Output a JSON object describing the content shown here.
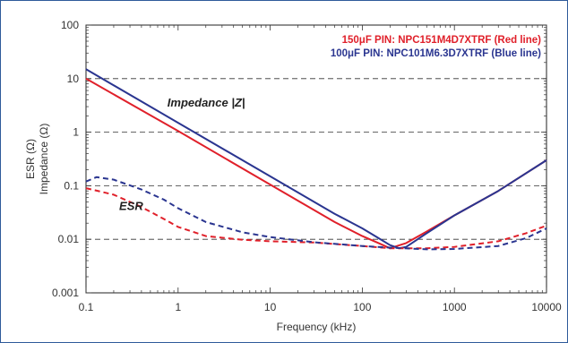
{
  "chart_data": {
    "type": "line",
    "xlabel": "Frequency (kHz)",
    "ylabel_lines": [
      "ESR (Ω)",
      "Impedance (Ω)"
    ],
    "x_scale": "log",
    "y_scale": "log",
    "xlim": [
      0.1,
      10000
    ],
    "ylim": [
      0.001,
      100
    ],
    "x_ticks": [
      {
        "value": 0.1,
        "label": "0.1"
      },
      {
        "value": 1,
        "label": "1"
      },
      {
        "value": 10,
        "label": "10"
      },
      {
        "value": 100,
        "label": "100"
      },
      {
        "value": 1000,
        "label": "1000"
      },
      {
        "value": 10000,
        "label": "10000"
      }
    ],
    "y_ticks": [
      {
        "value": 0.001,
        "label": "0.001"
      },
      {
        "value": 0.01,
        "label": "0.01"
      },
      {
        "value": 0.1,
        "label": "0.1"
      },
      {
        "value": 1,
        "label": "1"
      },
      {
        "value": 10,
        "label": "10"
      },
      {
        "value": 100,
        "label": "100"
      }
    ],
    "grid": "horizontal dashed",
    "legend": {
      "placement": "top-right",
      "entries": [
        {
          "text": "150μF PIN: NPC151M4D7XTRF (Red line)",
          "color": "#e0202a"
        },
        {
          "text": "100μF PIN: NPC101M6.3D7XTRF (Blue line)",
          "color": "#2a3590"
        }
      ]
    },
    "annotations": [
      {
        "text": "Impedance |Z|",
        "x": 1.0,
        "y": 3.0
      },
      {
        "text": "ESR",
        "x": 0.3,
        "y": 0.035
      }
    ],
    "series": [
      {
        "color": "#e0202a",
        "style": "solid",
        "x": [
          0.1,
          1,
          10,
          50,
          100,
          150,
          200,
          300,
          500,
          1000,
          3000,
          10000
        ],
        "y": [
          10,
          1.05,
          0.105,
          0.021,
          0.0115,
          0.0085,
          0.0068,
          0.0085,
          0.014,
          0.028,
          0.08,
          0.3
        ]
      },
      {
        "color": "#2a3590",
        "style": "solid",
        "x": [
          0.1,
          1,
          10,
          50,
          100,
          150,
          200,
          250,
          300,
          500,
          1000,
          3000,
          10000
        ],
        "y": [
          15,
          1.5,
          0.15,
          0.03,
          0.016,
          0.0105,
          0.0078,
          0.0068,
          0.0072,
          0.013,
          0.028,
          0.08,
          0.3
        ]
      },
      {
        "color": "#e0202a",
        "style": "dashed",
        "x": [
          0.1,
          0.2,
          0.4,
          0.7,
          1,
          2,
          5,
          10,
          30,
          100,
          200,
          500,
          1000,
          3000,
          6000,
          10000
        ],
        "y": [
          0.09,
          0.068,
          0.04,
          0.024,
          0.017,
          0.0115,
          0.0098,
          0.0092,
          0.0087,
          0.0075,
          0.0068,
          0.0068,
          0.0072,
          0.0092,
          0.013,
          0.018
        ]
      },
      {
        "color": "#2a3590",
        "style": "dashed",
        "x": [
          0.1,
          0.13,
          0.2,
          0.4,
          0.7,
          1,
          2,
          5,
          10,
          30,
          100,
          200,
          500,
          1000,
          3000,
          6000,
          10000
        ],
        "y": [
          0.12,
          0.145,
          0.13,
          0.085,
          0.055,
          0.038,
          0.021,
          0.0135,
          0.011,
          0.0088,
          0.0075,
          0.007,
          0.0065,
          0.0066,
          0.0075,
          0.0105,
          0.016
        ]
      }
    ]
  }
}
